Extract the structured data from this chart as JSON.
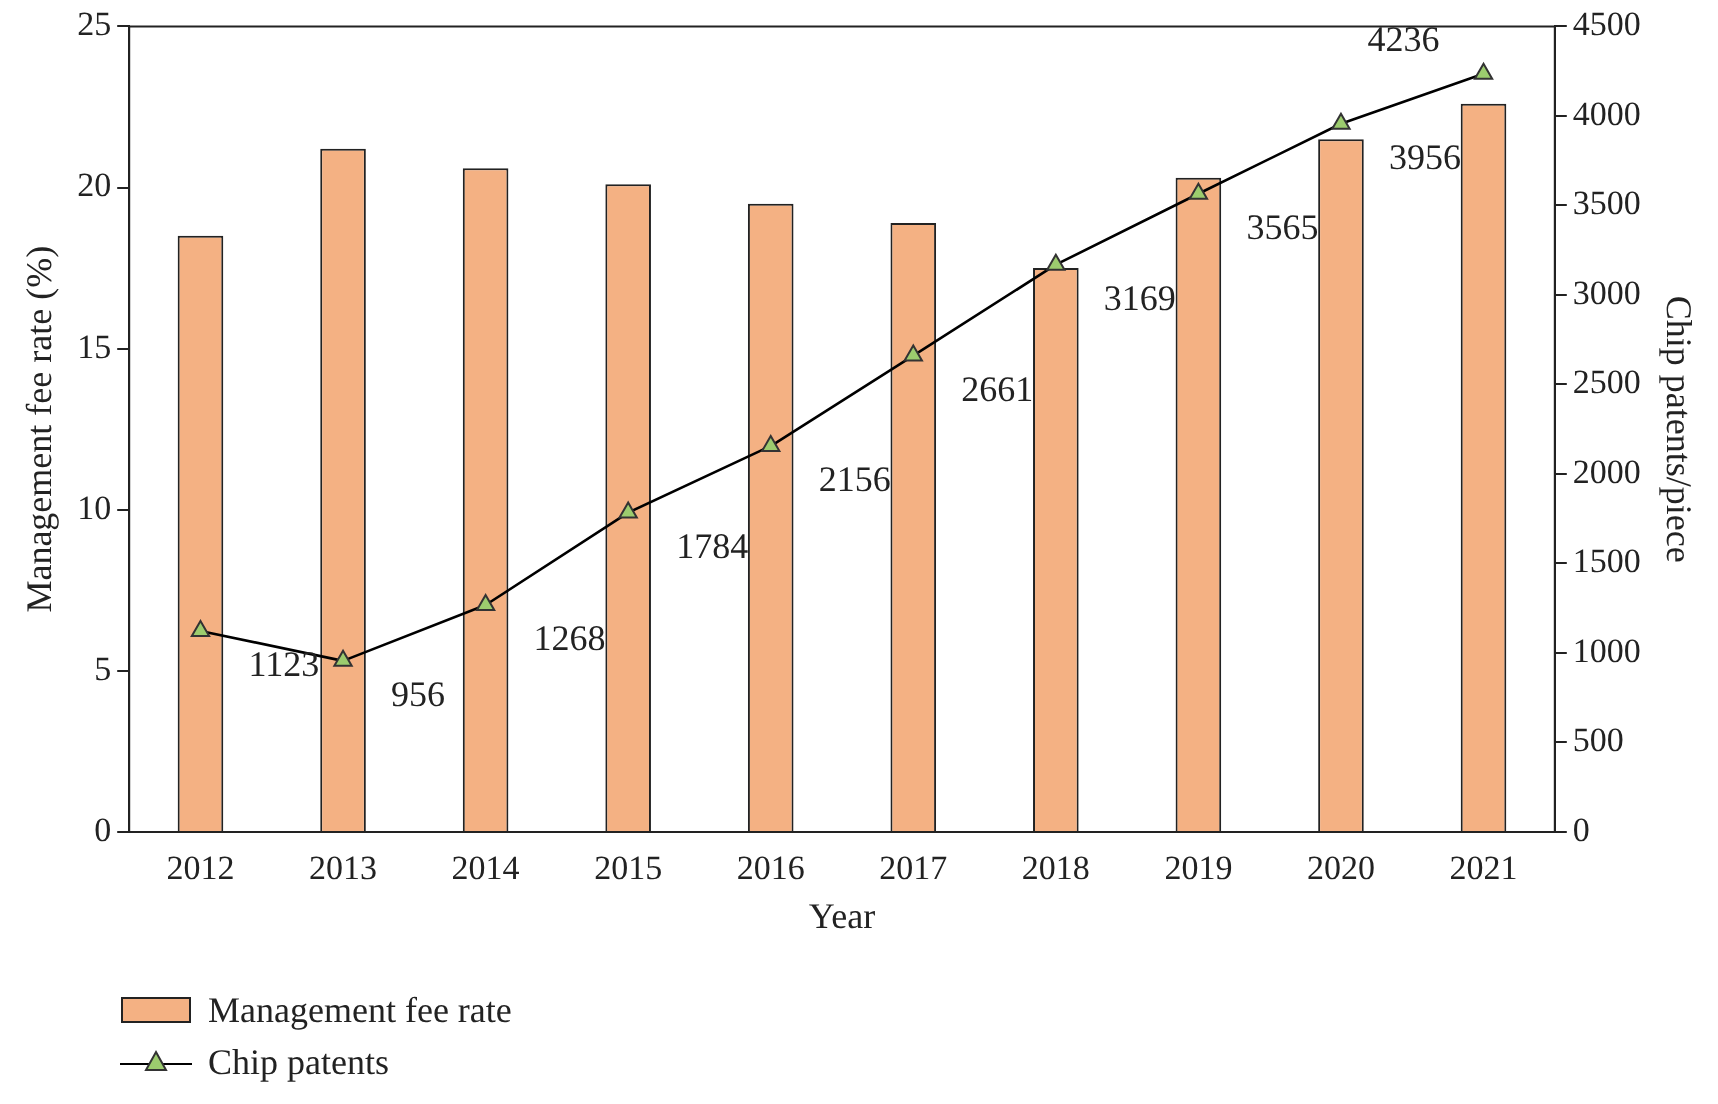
{
  "chart_data": {
    "type": "bar",
    "xlabel": "Year",
    "ylabel": "Management fee rate (%)",
    "y2label": "Chip patents/piece",
    "categories": [
      "2012",
      "2013",
      "2014",
      "2015",
      "2016",
      "2017",
      "2018",
      "2019",
      "2020",
      "2021"
    ],
    "series": [
      {
        "name": "Management fee rate",
        "color": "#f4b183",
        "values": [
          18.5,
          21.2,
          20.6,
          20.1,
          19.5,
          18.9,
          17.5,
          20.3,
          21.5,
          22.6
        ]
      },
      {
        "name": "Chip patents",
        "type": "line",
        "axis": "y2",
        "color": "#000000",
        "marker": "triangle",
        "values": [
          1123,
          956,
          1268,
          1784,
          2156,
          2661,
          3169,
          3565,
          3956,
          4236
        ],
        "value_labels": [
          "1123",
          "956",
          "1268",
          "1784",
          "2156",
          "2661",
          "3169",
          "3565",
          "3956",
          "4236"
        ]
      }
    ],
    "ylim": [
      0,
      25
    ],
    "yticks": [
      0,
      5,
      10,
      15,
      20,
      25
    ],
    "y2lim": [
      0,
      4500
    ],
    "y2ticks": [
      0,
      500,
      1000,
      1500,
      2000,
      2500,
      3000,
      3500,
      4000,
      4500
    ],
    "grid": false,
    "legend": "bottom left"
  }
}
